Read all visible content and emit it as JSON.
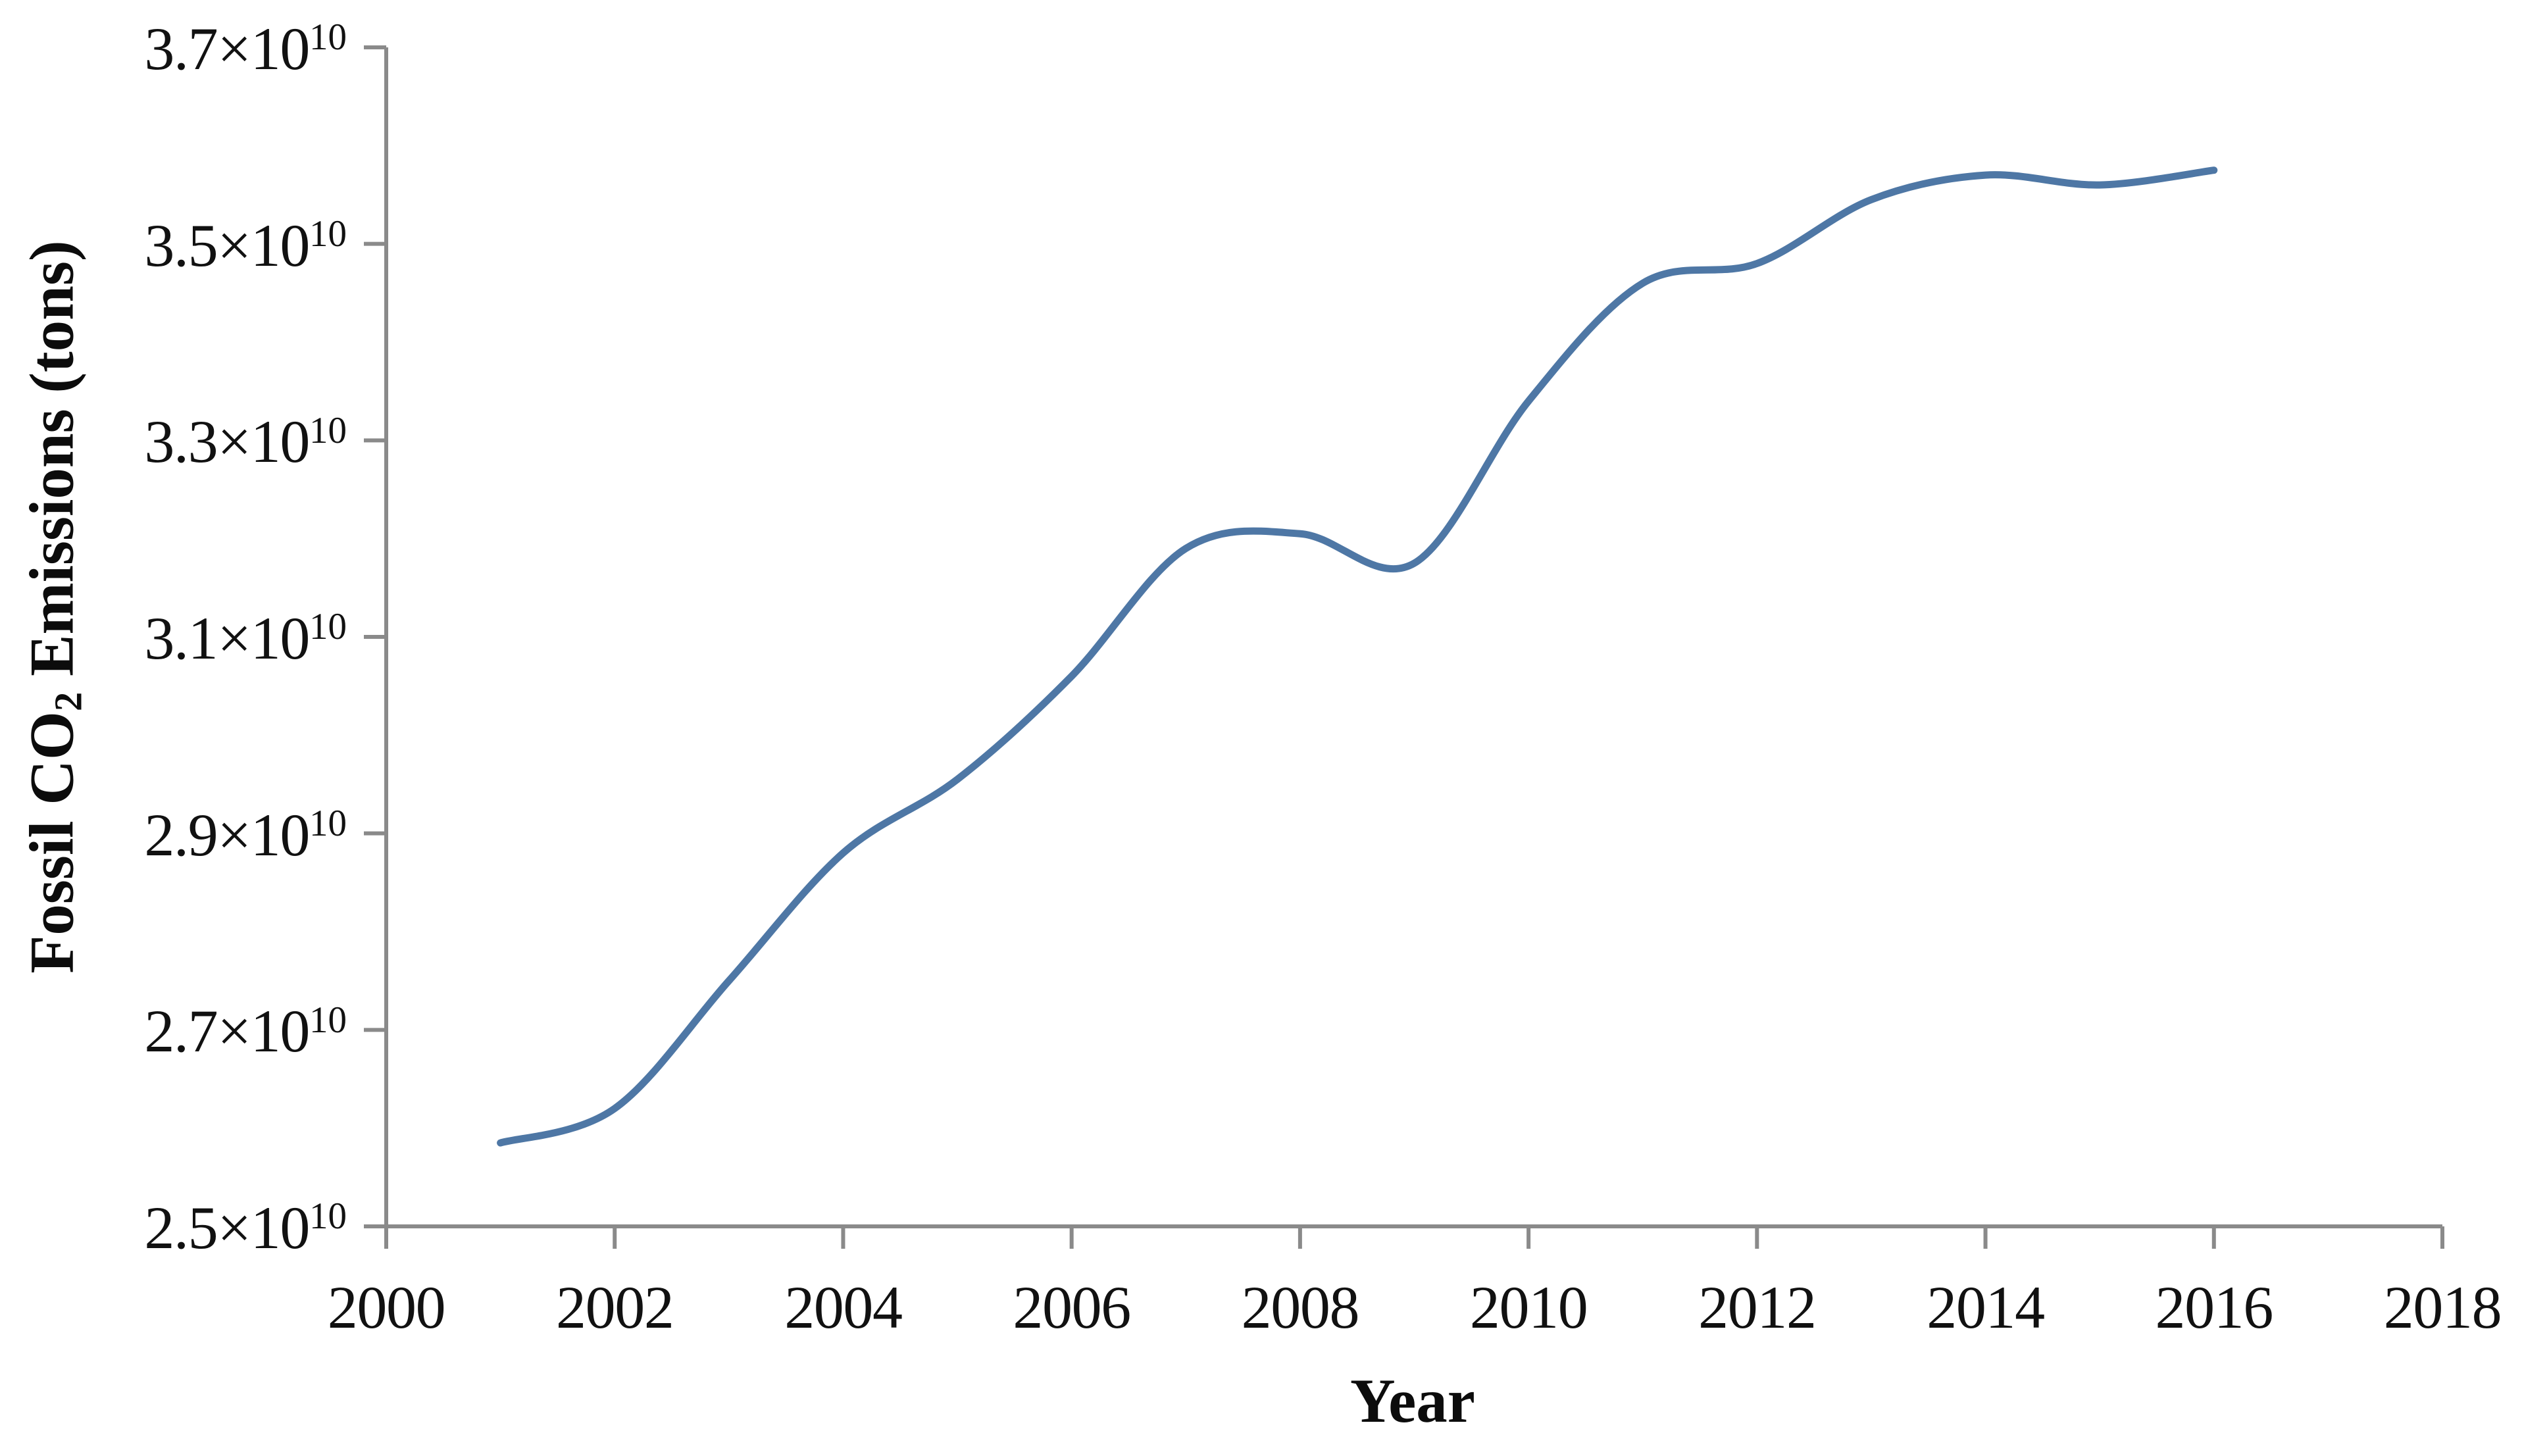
{
  "figure": {
    "y_axis": {
      "title_prefix": "Fossil CO",
      "title_sub": "2",
      "title_suffix": " Emissions (tons)",
      "ticks": [
        {
          "label": "2.5×10",
          "exp": "10",
          "value": 2.5
        },
        {
          "label": "2.7×10",
          "exp": "10",
          "value": 2.7
        },
        {
          "label": "2.9×10",
          "exp": "10",
          "value": 2.9
        },
        {
          "label": "3.1×10",
          "exp": "10",
          "value": 3.1
        },
        {
          "label": "3.3×10",
          "exp": "10",
          "value": 3.3
        },
        {
          "label": "3.5×10",
          "exp": "10",
          "value": 3.5
        },
        {
          "label": "3.7×10",
          "exp": "10",
          "value": 3.7
        }
      ]
    },
    "x_axis": {
      "title": "Year",
      "ticks": [
        {
          "label": "2000",
          "value": 2000
        },
        {
          "label": "2002",
          "value": 2002
        },
        {
          "label": "2004",
          "value": 2004
        },
        {
          "label": "2006",
          "value": 2006
        },
        {
          "label": "2008",
          "value": 2008
        },
        {
          "label": "2010",
          "value": 2010
        },
        {
          "label": "2012",
          "value": 2012
        },
        {
          "label": "2014",
          "value": 2014
        },
        {
          "label": "2016",
          "value": 2016
        },
        {
          "label": "2018",
          "value": 2018
        }
      ]
    },
    "colors": {
      "line": "#4e77a5",
      "axis": "#8a8a8a",
      "text": "#111111"
    }
  },
  "chart_data": {
    "type": "line",
    "title": "",
    "xlabel": "Year",
    "ylabel": "Fossil CO2 Emissions (tons)",
    "unit": "tons ×10^10",
    "x": [
      2001,
      2002,
      2003,
      2004,
      2005,
      2006,
      2007,
      2008,
      2009,
      2010,
      2011,
      2012,
      2013,
      2014,
      2015,
      2016
    ],
    "values_e10": [
      2.585,
      2.62,
      2.75,
      2.88,
      2.955,
      3.06,
      3.19,
      3.205,
      3.175,
      3.34,
      3.46,
      3.48,
      3.545,
      3.57,
      3.56,
      3.575
    ],
    "xlim": [
      2000,
      2018
    ],
    "ylim_e10": [
      2.5,
      3.7
    ],
    "xticks": [
      2000,
      2002,
      2004,
      2006,
      2008,
      2010,
      2012,
      2014,
      2016,
      2018
    ],
    "yticks_e10": [
      2.5,
      2.7,
      2.9,
      3.1,
      3.3,
      3.5,
      3.7
    ],
    "grid": false,
    "legend": null,
    "line_smoothed": true
  }
}
